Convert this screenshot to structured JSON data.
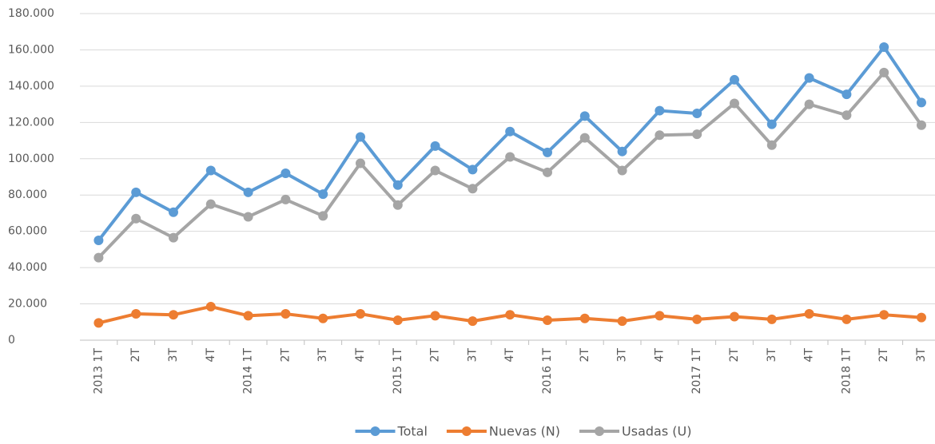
{
  "chart_data": {
    "type": "line",
    "categories": [
      "2013 1T",
      "2T",
      "3T",
      "4T",
      "2014 1T",
      "2T",
      "3T",
      "4T",
      "2015 1T",
      "2T",
      "3T",
      "4T",
      "2016 1T",
      "2T",
      "3T",
      "4T",
      "2017 1T",
      "2T",
      "3T",
      "4T",
      "2018 1T",
      "2T",
      "3T"
    ],
    "series": [
      {
        "name": "Total",
        "color": "#5b9bd5",
        "values": [
          55000,
          81500,
          70500,
          93500,
          81500,
          92000,
          80500,
          112000,
          85500,
          107000,
          94000,
          115000,
          103500,
          123500,
          104000,
          126500,
          125000,
          143500,
          119000,
          144500,
          135500,
          161500,
          131000
        ]
      },
      {
        "name": "Nuevas (N)",
        "color": "#ed7d31",
        "values": [
          9500,
          14500,
          14000,
          18500,
          13500,
          14500,
          12000,
          14500,
          11000,
          13500,
          10500,
          14000,
          11000,
          12000,
          10500,
          13500,
          11500,
          13000,
          11500,
          14500,
          11500,
          14000,
          12500
        ]
      },
      {
        "name": "Usadas (U)",
        "color": "#a5a5a5",
        "values": [
          45500,
          67000,
          56500,
          75000,
          68000,
          77500,
          68500,
          97500,
          74500,
          93500,
          83500,
          101000,
          92500,
          111500,
          93500,
          113000,
          113500,
          130500,
          107500,
          130000,
          124000,
          147500,
          118500
        ]
      }
    ],
    "ylim": [
      0,
      180000
    ],
    "yticks": [
      0,
      {
        "value": 20000,
        "label": "20.000"
      },
      {
        "value": 40000,
        "label": "40.000"
      },
      {
        "value": 60000,
        "label": "60.000"
      },
      {
        "value": 80000,
        "label": "80.000"
      },
      {
        "value": 100000,
        "label": "100.000"
      },
      {
        "value": 120000,
        "label": "120.000"
      },
      {
        "value": 140000,
        "label": "140.000"
      },
      {
        "value": 160000,
        "label": "160.000"
      },
      {
        "value": 180000,
        "label": "180.000"
      }
    ],
    "grid": true,
    "legend": "bottom"
  }
}
